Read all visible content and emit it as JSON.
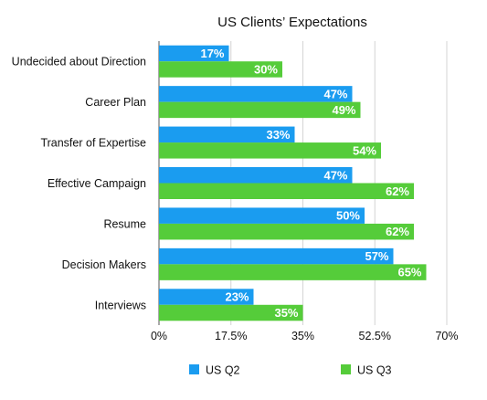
{
  "chart_data": {
    "type": "bar",
    "orientation": "horizontal",
    "title": "US Clients’ Expectations",
    "categories": [
      "Undecided about Direction",
      "Career Plan",
      "Transfer of Expertise",
      "Effective Campaign",
      "Resume",
      "Decision Makers",
      "Interviews"
    ],
    "series": [
      {
        "name": "US Q2",
        "color": "#1a9cf0",
        "values": [
          17,
          47,
          33,
          47,
          50,
          57,
          23
        ],
        "labels": [
          "17%",
          "47%",
          "33%",
          "47%",
          "50%",
          "57%",
          "23%"
        ]
      },
      {
        "name": "US Q3",
        "color": "#55cc3a",
        "values": [
          30,
          49,
          54,
          62,
          62,
          65,
          35
        ],
        "labels": [
          "30%",
          "49%",
          "54%",
          "62%",
          "62%",
          "65%",
          "35%"
        ]
      }
    ],
    "xlim": [
      0,
      70
    ],
    "xticks": [
      0,
      17.5,
      35,
      52.5,
      70
    ],
    "xtick_labels": [
      "0%",
      "17.5%",
      "35%",
      "52.5%",
      "70%"
    ],
    "unit": "%",
    "grid": true,
    "legend_position": "bottom"
  }
}
